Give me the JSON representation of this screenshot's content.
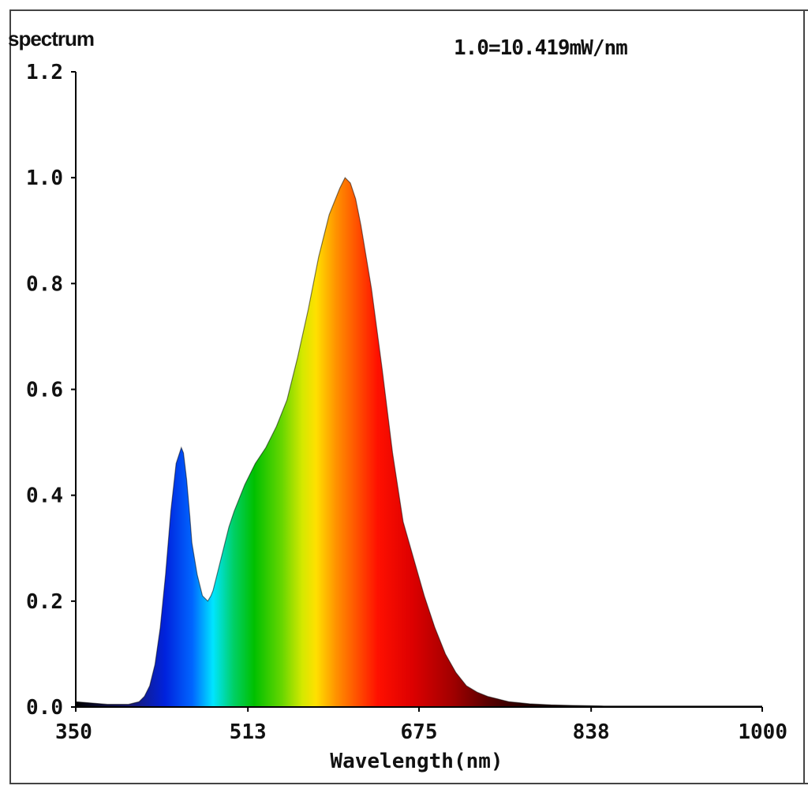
{
  "chart_data": {
    "type": "area",
    "title": "spectrum",
    "annotation": "1.0=10.419mW/nm",
    "xlabel": "Wavelength(nm)",
    "ylabel": "",
    "xlim": [
      350,
      1000
    ],
    "ylim": [
      0,
      1.2
    ],
    "x_ticks": [
      "350",
      "513",
      "675",
      "838",
      "1000"
    ],
    "y_ticks": [
      "0.0",
      "0.2",
      "0.4",
      "0.6",
      "0.8",
      "1.0",
      "1.2"
    ],
    "x": [
      350,
      380,
      400,
      410,
      415,
      420,
      425,
      430,
      435,
      440,
      445,
      450,
      452,
      455,
      458,
      460,
      465,
      470,
      475,
      478,
      480,
      485,
      490,
      495,
      500,
      510,
      520,
      530,
      540,
      550,
      560,
      570,
      580,
      590,
      600,
      605,
      610,
      615,
      620,
      630,
      640,
      650,
      660,
      670,
      680,
      690,
      700,
      710,
      720,
      730,
      740,
      750,
      760,
      770,
      780,
      800,
      820,
      850,
      900,
      950,
      1000
    ],
    "series": [
      {
        "values": [
          0.01,
          0.005,
          0.005,
          0.01,
          0.02,
          0.04,
          0.08,
          0.15,
          0.25,
          0.37,
          0.46,
          0.49,
          0.48,
          0.43,
          0.36,
          0.31,
          0.25,
          0.21,
          0.2,
          0.21,
          0.22,
          0.26,
          0.3,
          0.34,
          0.37,
          0.42,
          0.46,
          0.49,
          0.53,
          0.58,
          0.66,
          0.75,
          0.85,
          0.93,
          0.98,
          1.0,
          0.99,
          0.96,
          0.91,
          0.79,
          0.64,
          0.48,
          0.35,
          0.28,
          0.21,
          0.15,
          0.1,
          0.065,
          0.04,
          0.028,
          0.02,
          0.015,
          0.01,
          0.008,
          0.006,
          0.004,
          0.003,
          0.002,
          0.002,
          0.002,
          0.002
        ]
      }
    ],
    "grid": false,
    "legend": "none"
  }
}
